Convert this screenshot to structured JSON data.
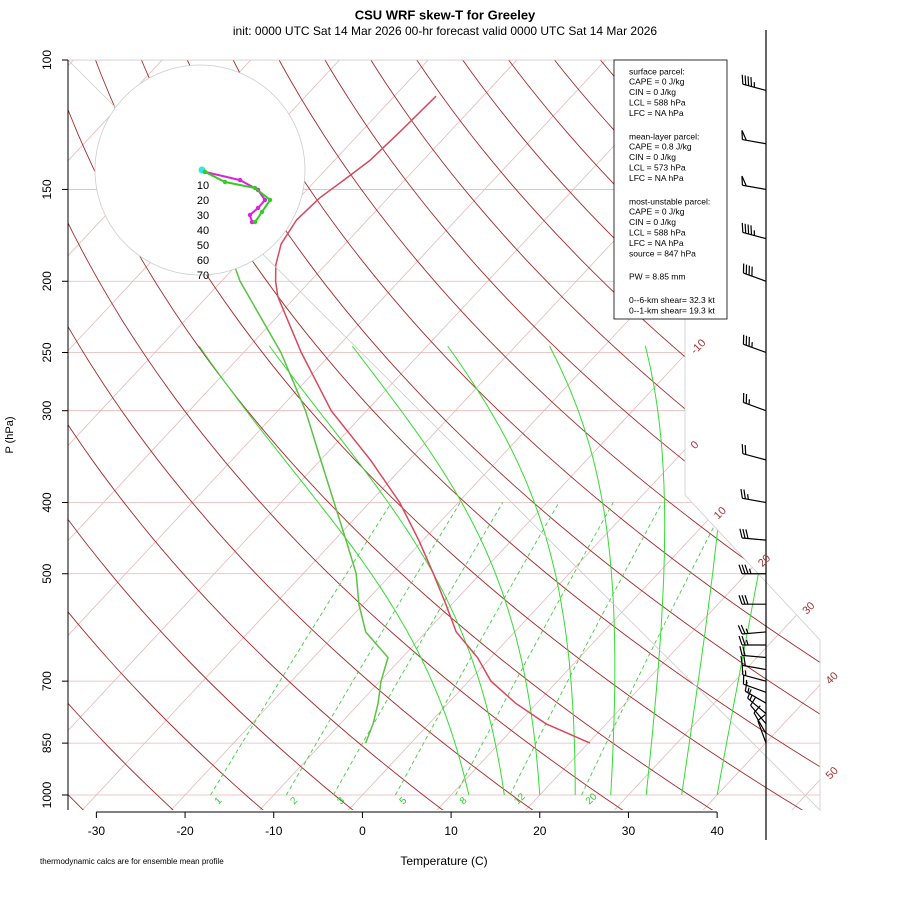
{
  "chart_data": {
    "type": "skewt",
    "title": "CSU WRF skew-T for Greeley",
    "subtitle": "init: 0000 UTC Sat 14 Mar 2026     00-hr forecast valid 0000 UTC Sat 14 Mar 2026",
    "xlabel": "Temperature (C)",
    "ylabel": "P (hPa)",
    "note": "thermodynamic calcs are for ensemble mean profile",
    "ylim": [
      1000,
      100
    ],
    "yticks": [
      100,
      150,
      200,
      250,
      300,
      400,
      500,
      700,
      850,
      1000
    ],
    "xlim": [
      -33.2,
      51.6
    ],
    "xticks": [
      -30,
      -20,
      -10,
      0,
      10,
      20,
      30,
      40
    ],
    "isotherm_labels": [
      -10,
      0,
      10,
      20,
      30,
      40,
      50
    ],
    "mixing_ratios": [
      1,
      2,
      3,
      5,
      8,
      12,
      20
    ],
    "temperature": {
      "color": "#d64a5e",
      "pressure": [
        850,
        800,
        750,
        700,
        650,
        600,
        550,
        500,
        450,
        400,
        350,
        300,
        250,
        210,
        200,
        190,
        178,
        165,
        154,
        145,
        137,
        125,
        112
      ],
      "values": [
        20.2,
        13.2,
        7.6,
        2.5,
        -1.5,
        -6.6,
        -10.7,
        -15.3,
        -20.5,
        -26.6,
        -34.4,
        -44,
        -53.5,
        -62,
        -63.9,
        -65.6,
        -67.2,
        -68,
        -67.7,
        -66.8,
        -66,
        -65.6,
        -65.3
      ]
    },
    "dewpoint": {
      "color": "#5cc245",
      "pressure": [
        850,
        800,
        750,
        700,
        650,
        600,
        550,
        500,
        450,
        400,
        350,
        300,
        250,
        200,
        190
      ],
      "values": [
        -5.1,
        -6.3,
        -7.9,
        -9.9,
        -11.6,
        -16.8,
        -20.5,
        -24,
        -28.7,
        -34,
        -40,
        -46.9,
        -55.8,
        -67.9,
        -70.3
      ]
    },
    "wind": {
      "pressure": [
        110,
        130,
        150,
        175,
        200,
        250,
        300,
        350,
        400,
        450,
        500,
        550,
        600,
        625,
        650,
        675,
        700,
        725,
        750,
        775,
        800,
        825,
        850
      ],
      "speed": [
        45,
        50,
        50,
        45,
        40,
        35,
        25,
        20,
        25,
        30,
        35,
        30,
        25,
        25,
        20,
        20,
        15,
        15,
        15,
        15,
        10,
        10,
        10
      ],
      "direction": [
        285,
        280,
        280,
        285,
        290,
        290,
        290,
        285,
        280,
        275,
        270,
        270,
        265,
        270,
        275,
        280,
        285,
        290,
        300,
        310,
        320,
        330,
        340
      ]
    },
    "hodograph": {
      "rings": [
        10,
        20,
        30,
        40,
        50,
        60,
        70
      ],
      "traces": [
        {
          "color": "#dd22dd",
          "u": [
            3.3,
            26.7,
            38.7,
            43.3,
            38.7,
            33.3,
            34.7
          ],
          "v": [
            -1.3,
            -6.7,
            -13.3,
            -20,
            -25.3,
            -30,
            -34.7
          ]
        },
        {
          "color": "#33cc22",
          "u": [
            3.3,
            16.7,
            36.7,
            46.7,
            41.3,
            36.7
          ],
          "v": [
            -1.3,
            -8,
            -12,
            -20,
            -28,
            -34.7
          ]
        }
      ]
    },
    "info_box": [
      [
        "surface parcel:",
        "CAPE = 0 J/kg",
        "CIN = 0 J/kg",
        "LCL = 588 hPa",
        "LFC = NA hPa"
      ],
      [
        "mean-layer parcel:",
        "CAPE = 0.8 J/kg",
        "CIN = 0 J/kg",
        "LCL = 573 hPa",
        "LFC = NA hPa"
      ],
      [
        "most-unstable parcel:",
        "CAPE = 0 J/kg",
        "CIN = 0 J/kg",
        "LCL = 588 hPa",
        "LFC = NA hPa",
        "source = 847 hPa"
      ],
      [
        "PW =  8.85 mm"
      ],
      [
        "0--6-km shear= 32.3 kt",
        "0--1-km shear= 19.3 kt"
      ]
    ]
  }
}
